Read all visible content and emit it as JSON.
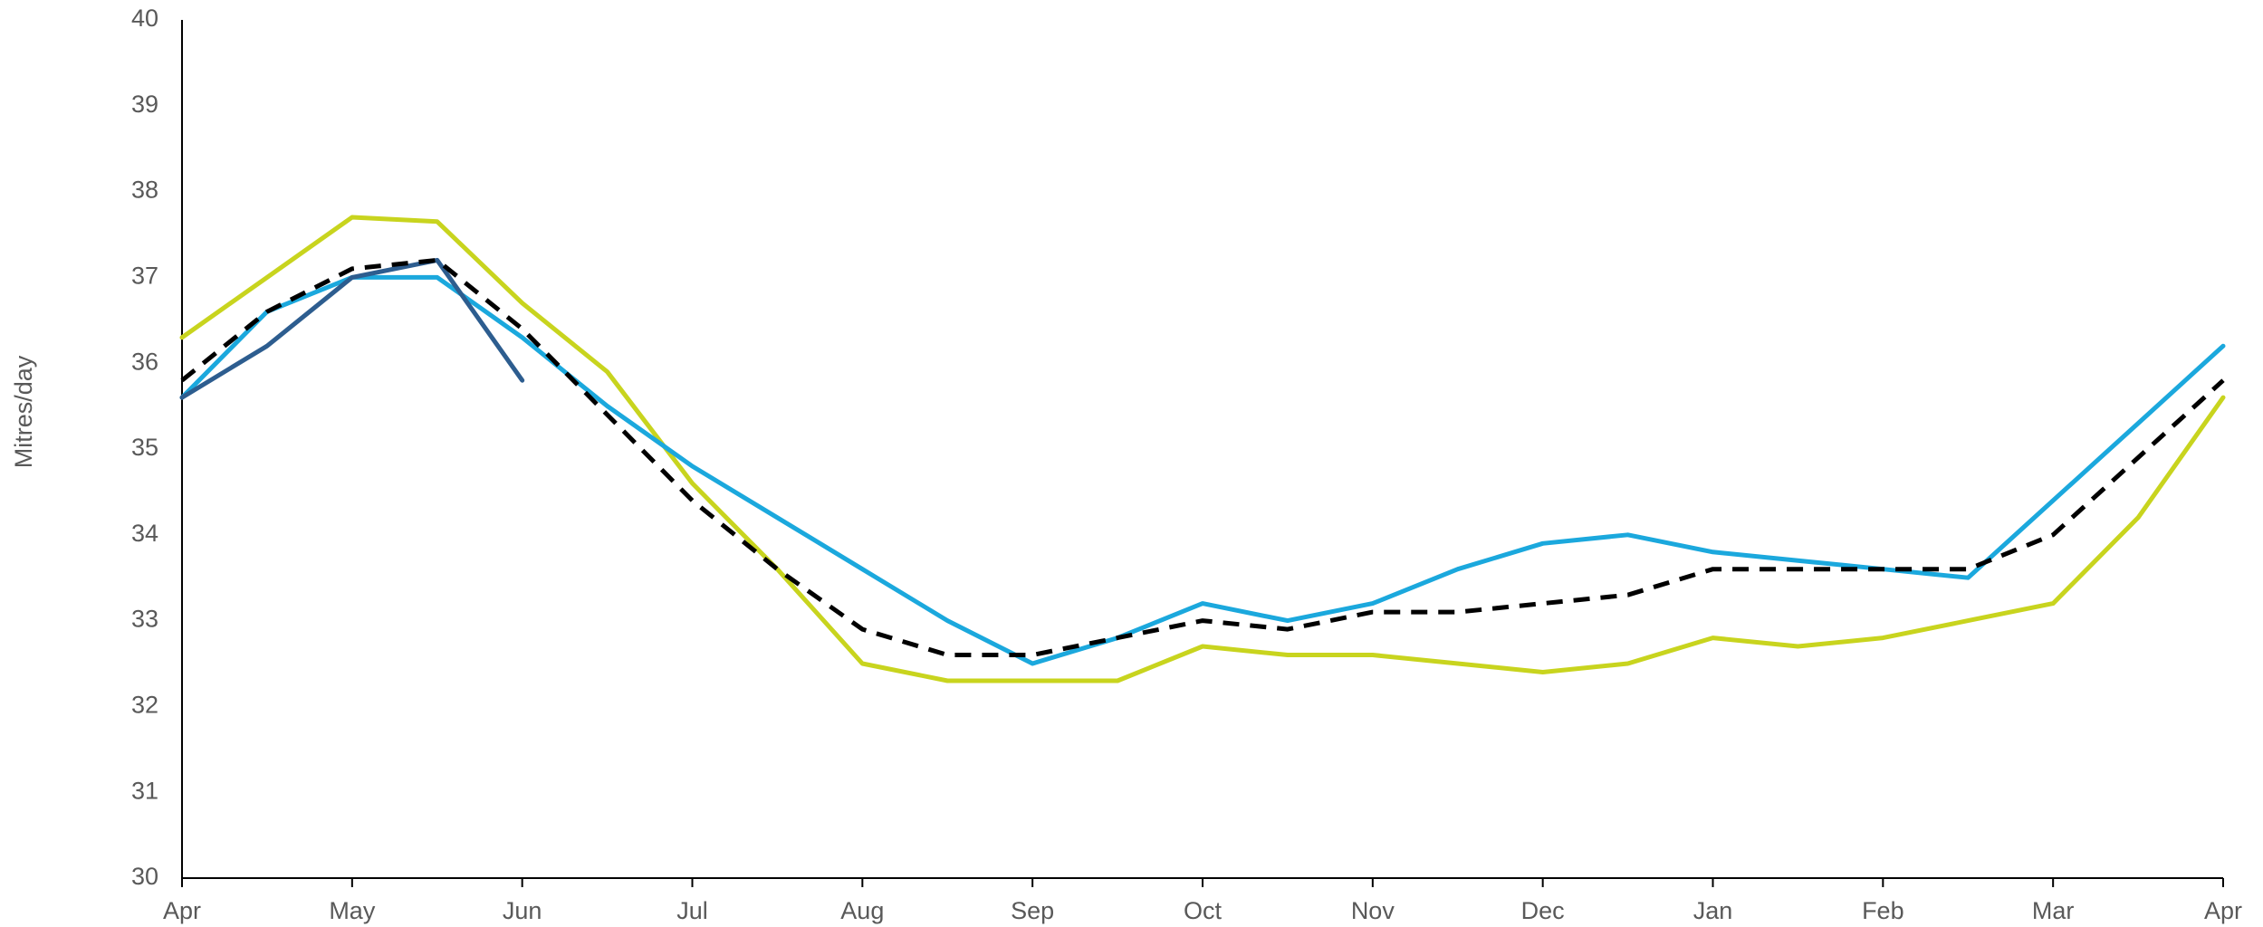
{
  "chart_data": {
    "type": "line",
    "ylabel": "Mitres/day",
    "categories": [
      "Apr",
      null,
      "May",
      null,
      "Jun",
      null,
      "Jul",
      null,
      "Aug",
      null,
      "Sep",
      null,
      "Oct",
      null,
      "Nov",
      null,
      "Dec",
      null,
      "Jan",
      null,
      "Feb",
      null,
      "Mar",
      null,
      "Apr"
    ],
    "series": [
      {
        "color": "#c8d41e",
        "dash": false,
        "values": [
          36.3,
          37.0,
          37.7,
          37.65,
          36.7,
          35.9,
          34.6,
          33.6,
          32.5,
          32.3,
          32.3,
          32.3,
          32.7,
          32.6,
          32.6,
          32.5,
          32.4,
          32.5,
          32.8,
          32.7,
          32.8,
          33.0,
          33.2,
          34.2,
          35.6
        ]
      },
      {
        "color": "#1ba8dd",
        "dash": false,
        "values": [
          35.6,
          36.6,
          37.0,
          37.0,
          36.3,
          35.5,
          34.8,
          34.2,
          33.6,
          33.0,
          32.5,
          32.8,
          33.2,
          33.0,
          33.2,
          33.6,
          33.9,
          34.0,
          33.8,
          33.7,
          33.6,
          33.5,
          34.4,
          35.3,
          36.2
        ]
      },
      {
        "color": "#2d5d8f",
        "dash": false,
        "values": [
          35.6,
          36.2,
          37.0,
          37.2,
          35.8,
          null,
          null,
          null,
          null,
          null,
          null,
          null,
          null,
          null,
          null,
          null,
          null,
          null,
          null,
          null,
          null,
          null,
          null,
          null,
          null
        ]
      },
      {
        "color": "#000000",
        "dash": true,
        "values": [
          35.8,
          36.6,
          37.1,
          37.2,
          36.4,
          35.4,
          34.4,
          33.6,
          32.9,
          32.6,
          32.6,
          32.8,
          33.0,
          32.9,
          33.1,
          33.1,
          33.2,
          33.3,
          33.6,
          33.6,
          33.6,
          33.6,
          34.0,
          34.9,
          35.8
        ]
      }
    ],
    "ylim": [
      30,
      40
    ],
    "yticks": [
      30,
      31,
      32,
      33,
      34,
      35,
      36,
      37,
      38,
      39,
      40
    ],
    "grid": false
  }
}
